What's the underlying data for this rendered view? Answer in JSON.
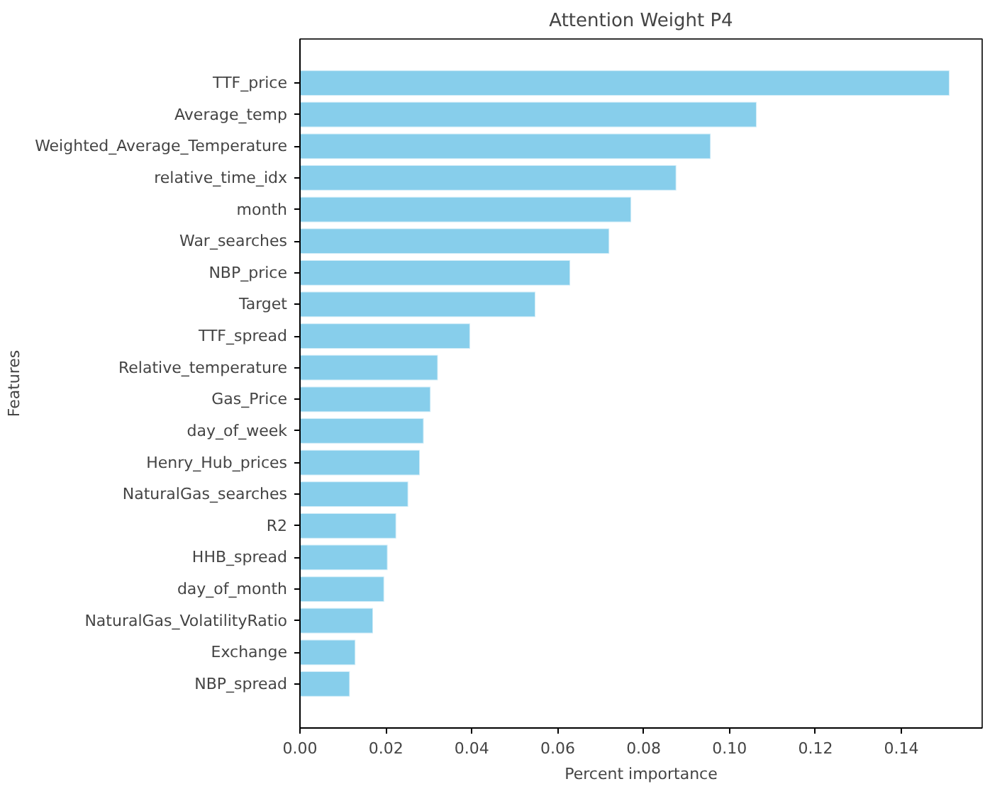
{
  "chart_data": {
    "type": "bar",
    "orientation": "horizontal",
    "title": "Attention Weight P4",
    "xlabel": "Percent importance",
    "ylabel": "Features",
    "categories": [
      "TTF_price",
      "Average_temp",
      "Weighted_Average_Temperature",
      "relative_time_idx",
      "month",
      "War_searches",
      "NBP_price",
      "Target",
      "TTF_spread",
      "Relative_temperature",
      "Gas_Price",
      "day_of_week",
      "Henry_Hub_prices",
      "NaturalGas_searches",
      "R2",
      "HHB_spread",
      "day_of_month",
      "NaturalGas_VolatilityRatio",
      "Exchange",
      "NBP_spread"
    ],
    "values": [
      0.1512,
      0.1063,
      0.0956,
      0.0876,
      0.0771,
      0.072,
      0.0629,
      0.0548,
      0.0396,
      0.0321,
      0.0304,
      0.0288,
      0.0279,
      0.0252,
      0.0224,
      0.0204,
      0.0196,
      0.017,
      0.0129,
      0.0116
    ],
    "color": "#87ceeb",
    "xlim": [
      0,
      0.1588
    ],
    "xticks": [
      {
        "value": 0,
        "label": "0.00"
      },
      {
        "value": 0.02,
        "label": "0.02"
      },
      {
        "value": 0.04,
        "label": "0.04"
      },
      {
        "value": 0.06,
        "label": "0.06"
      },
      {
        "value": 0.08,
        "label": "0.08"
      },
      {
        "value": 0.1,
        "label": "0.10"
      },
      {
        "value": 0.12,
        "label": "0.12"
      },
      {
        "value": 0.14,
        "label": "0.14"
      }
    ],
    "grid": false
  }
}
